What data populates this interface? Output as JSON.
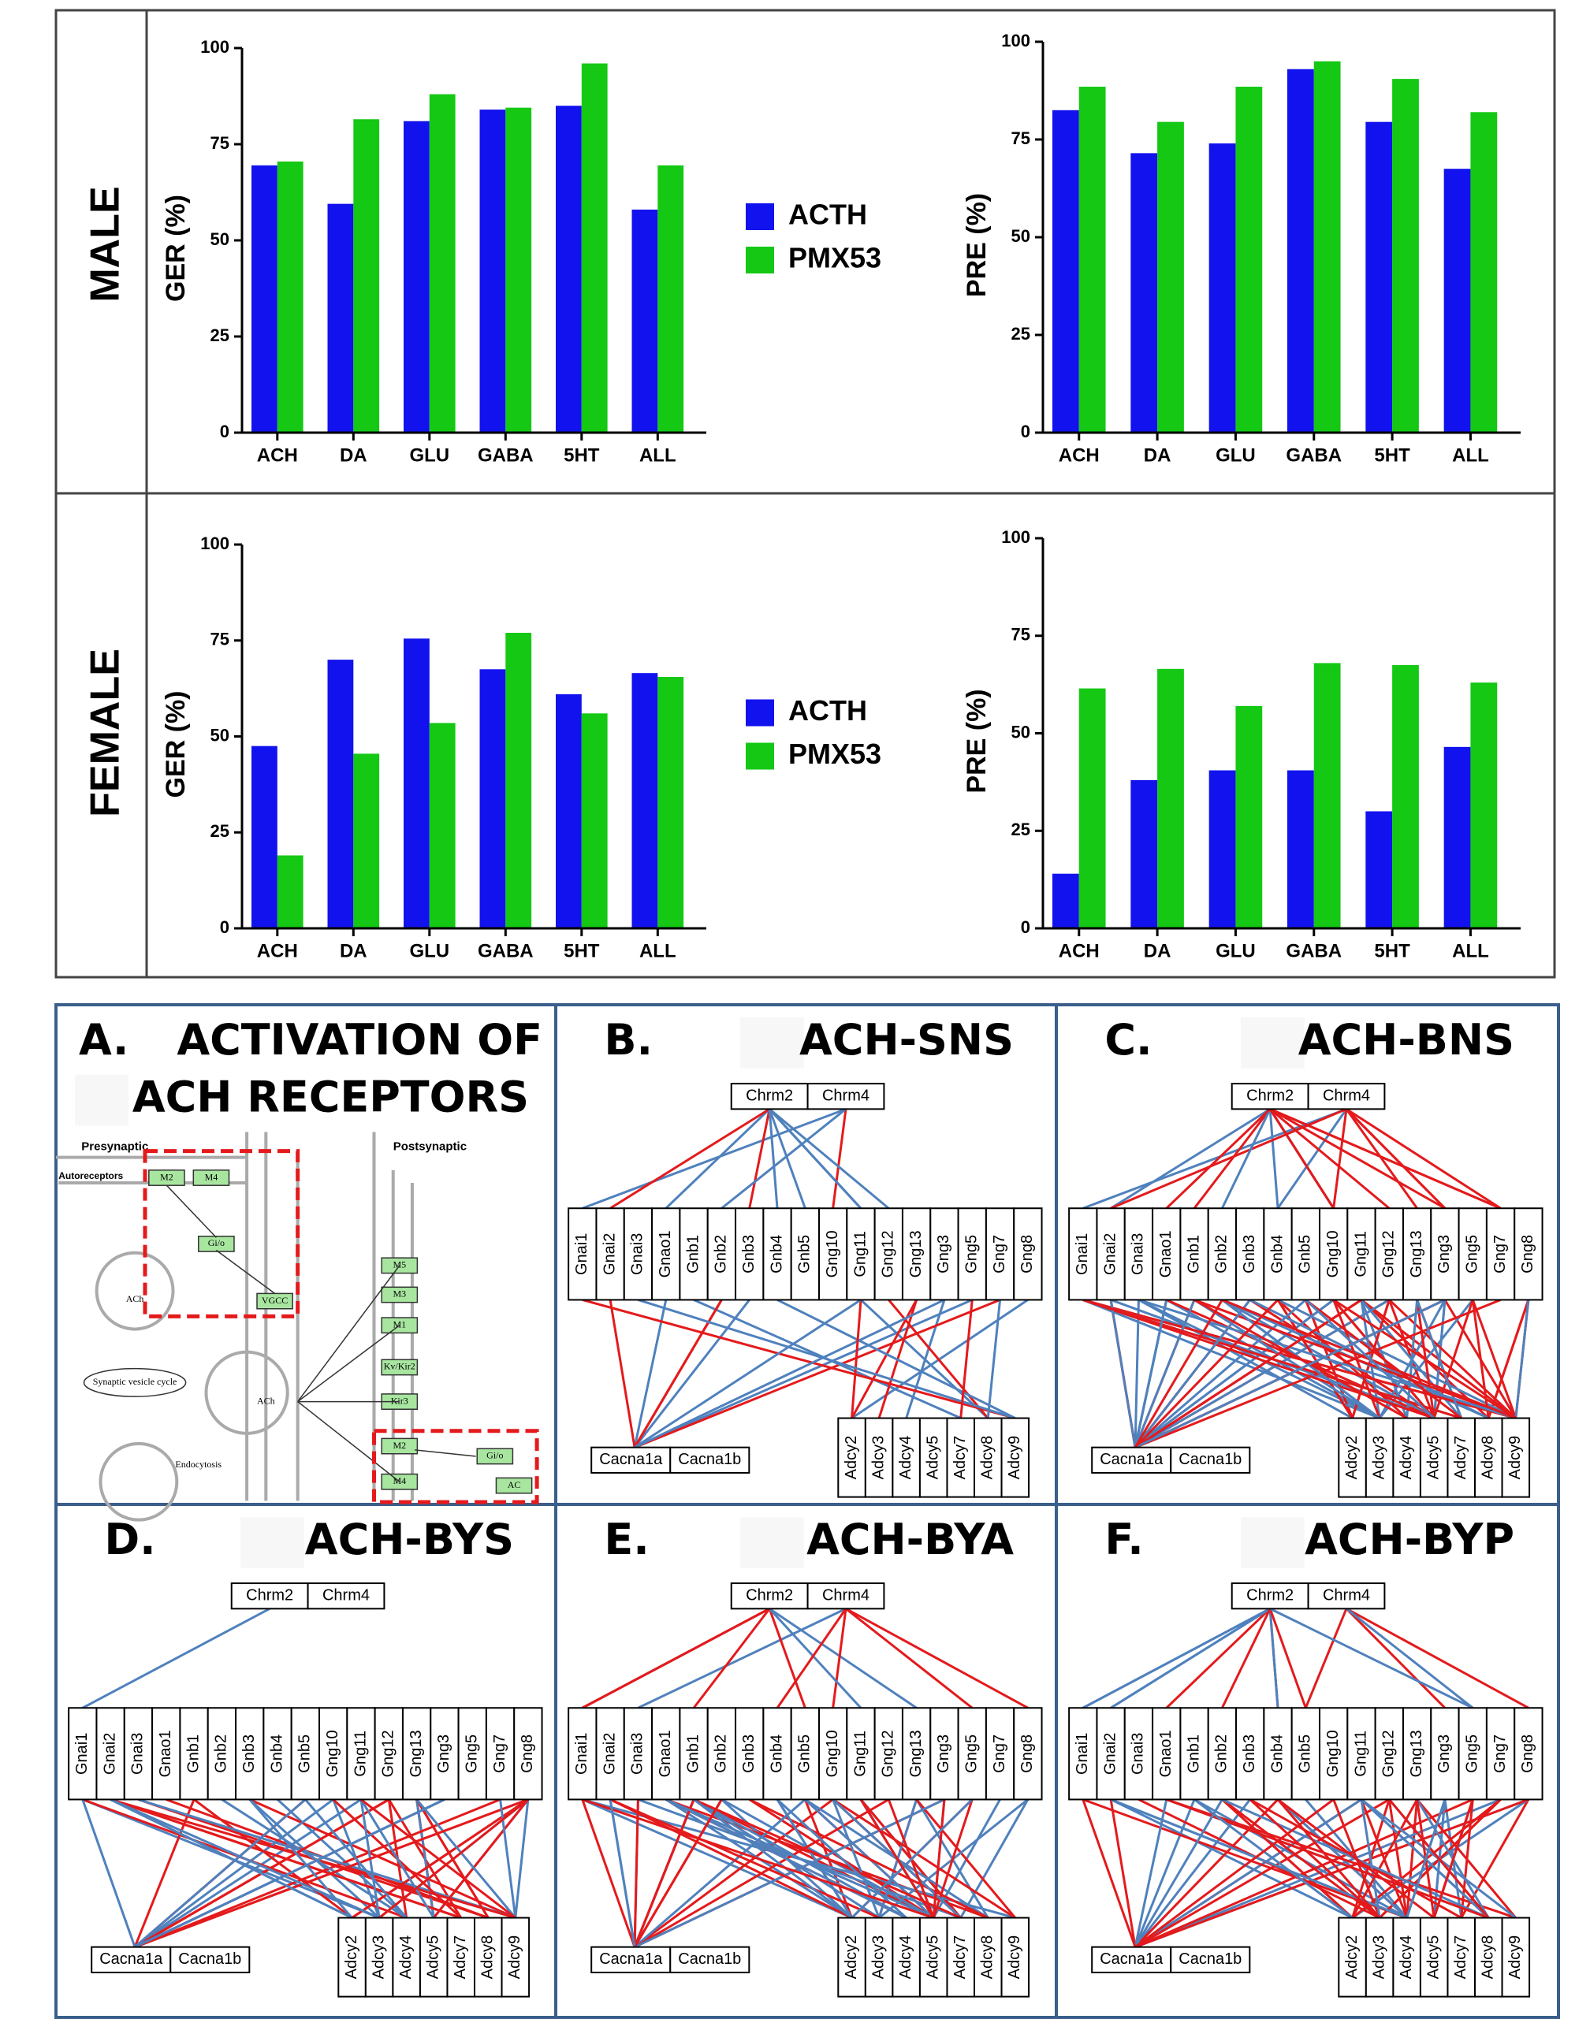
{
  "row_labels": [
    "MALE",
    "FEMALE"
  ],
  "chart_data": [
    {
      "type": "bar",
      "y_label": "GER (%)",
      "categories": [
        "ACH",
        "DA",
        "GLU",
        "GABA",
        "5HT",
        "ALL"
      ],
      "series": [
        {
          "name": "ACTH",
          "color": "#1212ee",
          "values": [
            69.5,
            59.5,
            81,
            84,
            85,
            58
          ]
        },
        {
          "name": "PMX53",
          "color": "#14c814",
          "values": [
            70.5,
            81.5,
            88,
            84.5,
            96,
            69.5
          ]
        }
      ],
      "ylim": [
        0,
        100
      ],
      "yticks": [
        0,
        25,
        50,
        75,
        100
      ],
      "legend": "right"
    },
    {
      "type": "bar",
      "y_label": "PRE (%)",
      "categories": [
        "ACH",
        "DA",
        "GLU",
        "GABA",
        "5HT",
        "ALL"
      ],
      "series": [
        {
          "color": "#1212ee",
          "values": [
            82.5,
            71.5,
            74,
            93,
            79.5,
            67.5
          ]
        },
        {
          "color": "#14c814",
          "values": [
            88.5,
            79.5,
            88.5,
            95,
            90.5,
            82
          ]
        }
      ],
      "ylim": [
        0,
        100
      ],
      "yticks": [
        0,
        25,
        50,
        75,
        100
      ]
    },
    {
      "type": "bar",
      "y_label": "GER (%)",
      "categories": [
        "ACH",
        "DA",
        "GLU",
        "GABA",
        "5HT",
        "ALL"
      ],
      "series": [
        {
          "name": "ACTH",
          "color": "#1212ee",
          "values": [
            47.5,
            70,
            75.5,
            67.5,
            61,
            66.5
          ]
        },
        {
          "name": "PMX53",
          "color": "#14c814",
          "values": [
            19,
            45.5,
            53.5,
            77,
            56,
            65.5
          ]
        }
      ],
      "ylim": [
        0,
        100
      ],
      "yticks": [
        0,
        25,
        50,
        75,
        100
      ],
      "legend": "right"
    },
    {
      "type": "bar",
      "y_label": "PRE (%)",
      "categories": [
        "ACH",
        "DA",
        "GLU",
        "GABA",
        "5HT",
        "ALL"
      ],
      "series": [
        {
          "color": "#1212ee",
          "values": [
            14,
            38,
            40.5,
            40.5,
            30,
            46.5
          ]
        },
        {
          "color": "#14c814",
          "values": [
            61.5,
            66.5,
            57,
            68,
            67.5,
            63
          ]
        }
      ],
      "ylim": [
        0,
        100
      ],
      "yticks": [
        0,
        25,
        50,
        75,
        100
      ]
    }
  ],
  "panel_a": {
    "letter": "A.",
    "title_lines": [
      "ACTIVATION OF",
      "ACH RECEPTORS"
    ],
    "labels": [
      "Presynaptic",
      "Postsynaptic",
      "Autoreceptors",
      "M2",
      "M4",
      "Gi/o",
      "VGCC",
      "ACh",
      "Synaptic vesicle cycle",
      "ACh",
      "Endocytosis",
      "M5",
      "M3",
      "M1",
      "Kv/Kir2",
      "Kir3",
      "M2",
      "M4",
      "Gi/o",
      "AC"
    ]
  },
  "genes": {
    "chrm": [
      "Chrm2",
      "Chrm4"
    ],
    "g": [
      "Gnai1",
      "Gnai2",
      "Gnai3",
      "Gnao1",
      "Gnb1",
      "Gnb2",
      "Gnb3",
      "Gnb4",
      "Gnb5",
      "Gng10",
      "Gng11",
      "Gng12",
      "Gng13",
      "Gng3",
      "Gng5",
      "Gng7",
      "Gng8"
    ],
    "cacna": [
      "Cacna1a",
      "Cacna1b"
    ],
    "adcy": [
      "Adcy2",
      "Adcy3",
      "Adcy4",
      "Adcy5",
      "Adcy7",
      "Adcy8",
      "Adcy9"
    ]
  },
  "panels": [
    {
      "letter": "B.",
      "title": "ACH-SNS"
    },
    {
      "letter": "C.",
      "title": "ACH-BNS"
    },
    {
      "letter": "D.",
      "title": "ACH-BYS"
    },
    {
      "letter": "E.",
      "title": "ACH-BYA"
    },
    {
      "letter": "F.",
      "title": "ACH-BYP"
    }
  ]
}
